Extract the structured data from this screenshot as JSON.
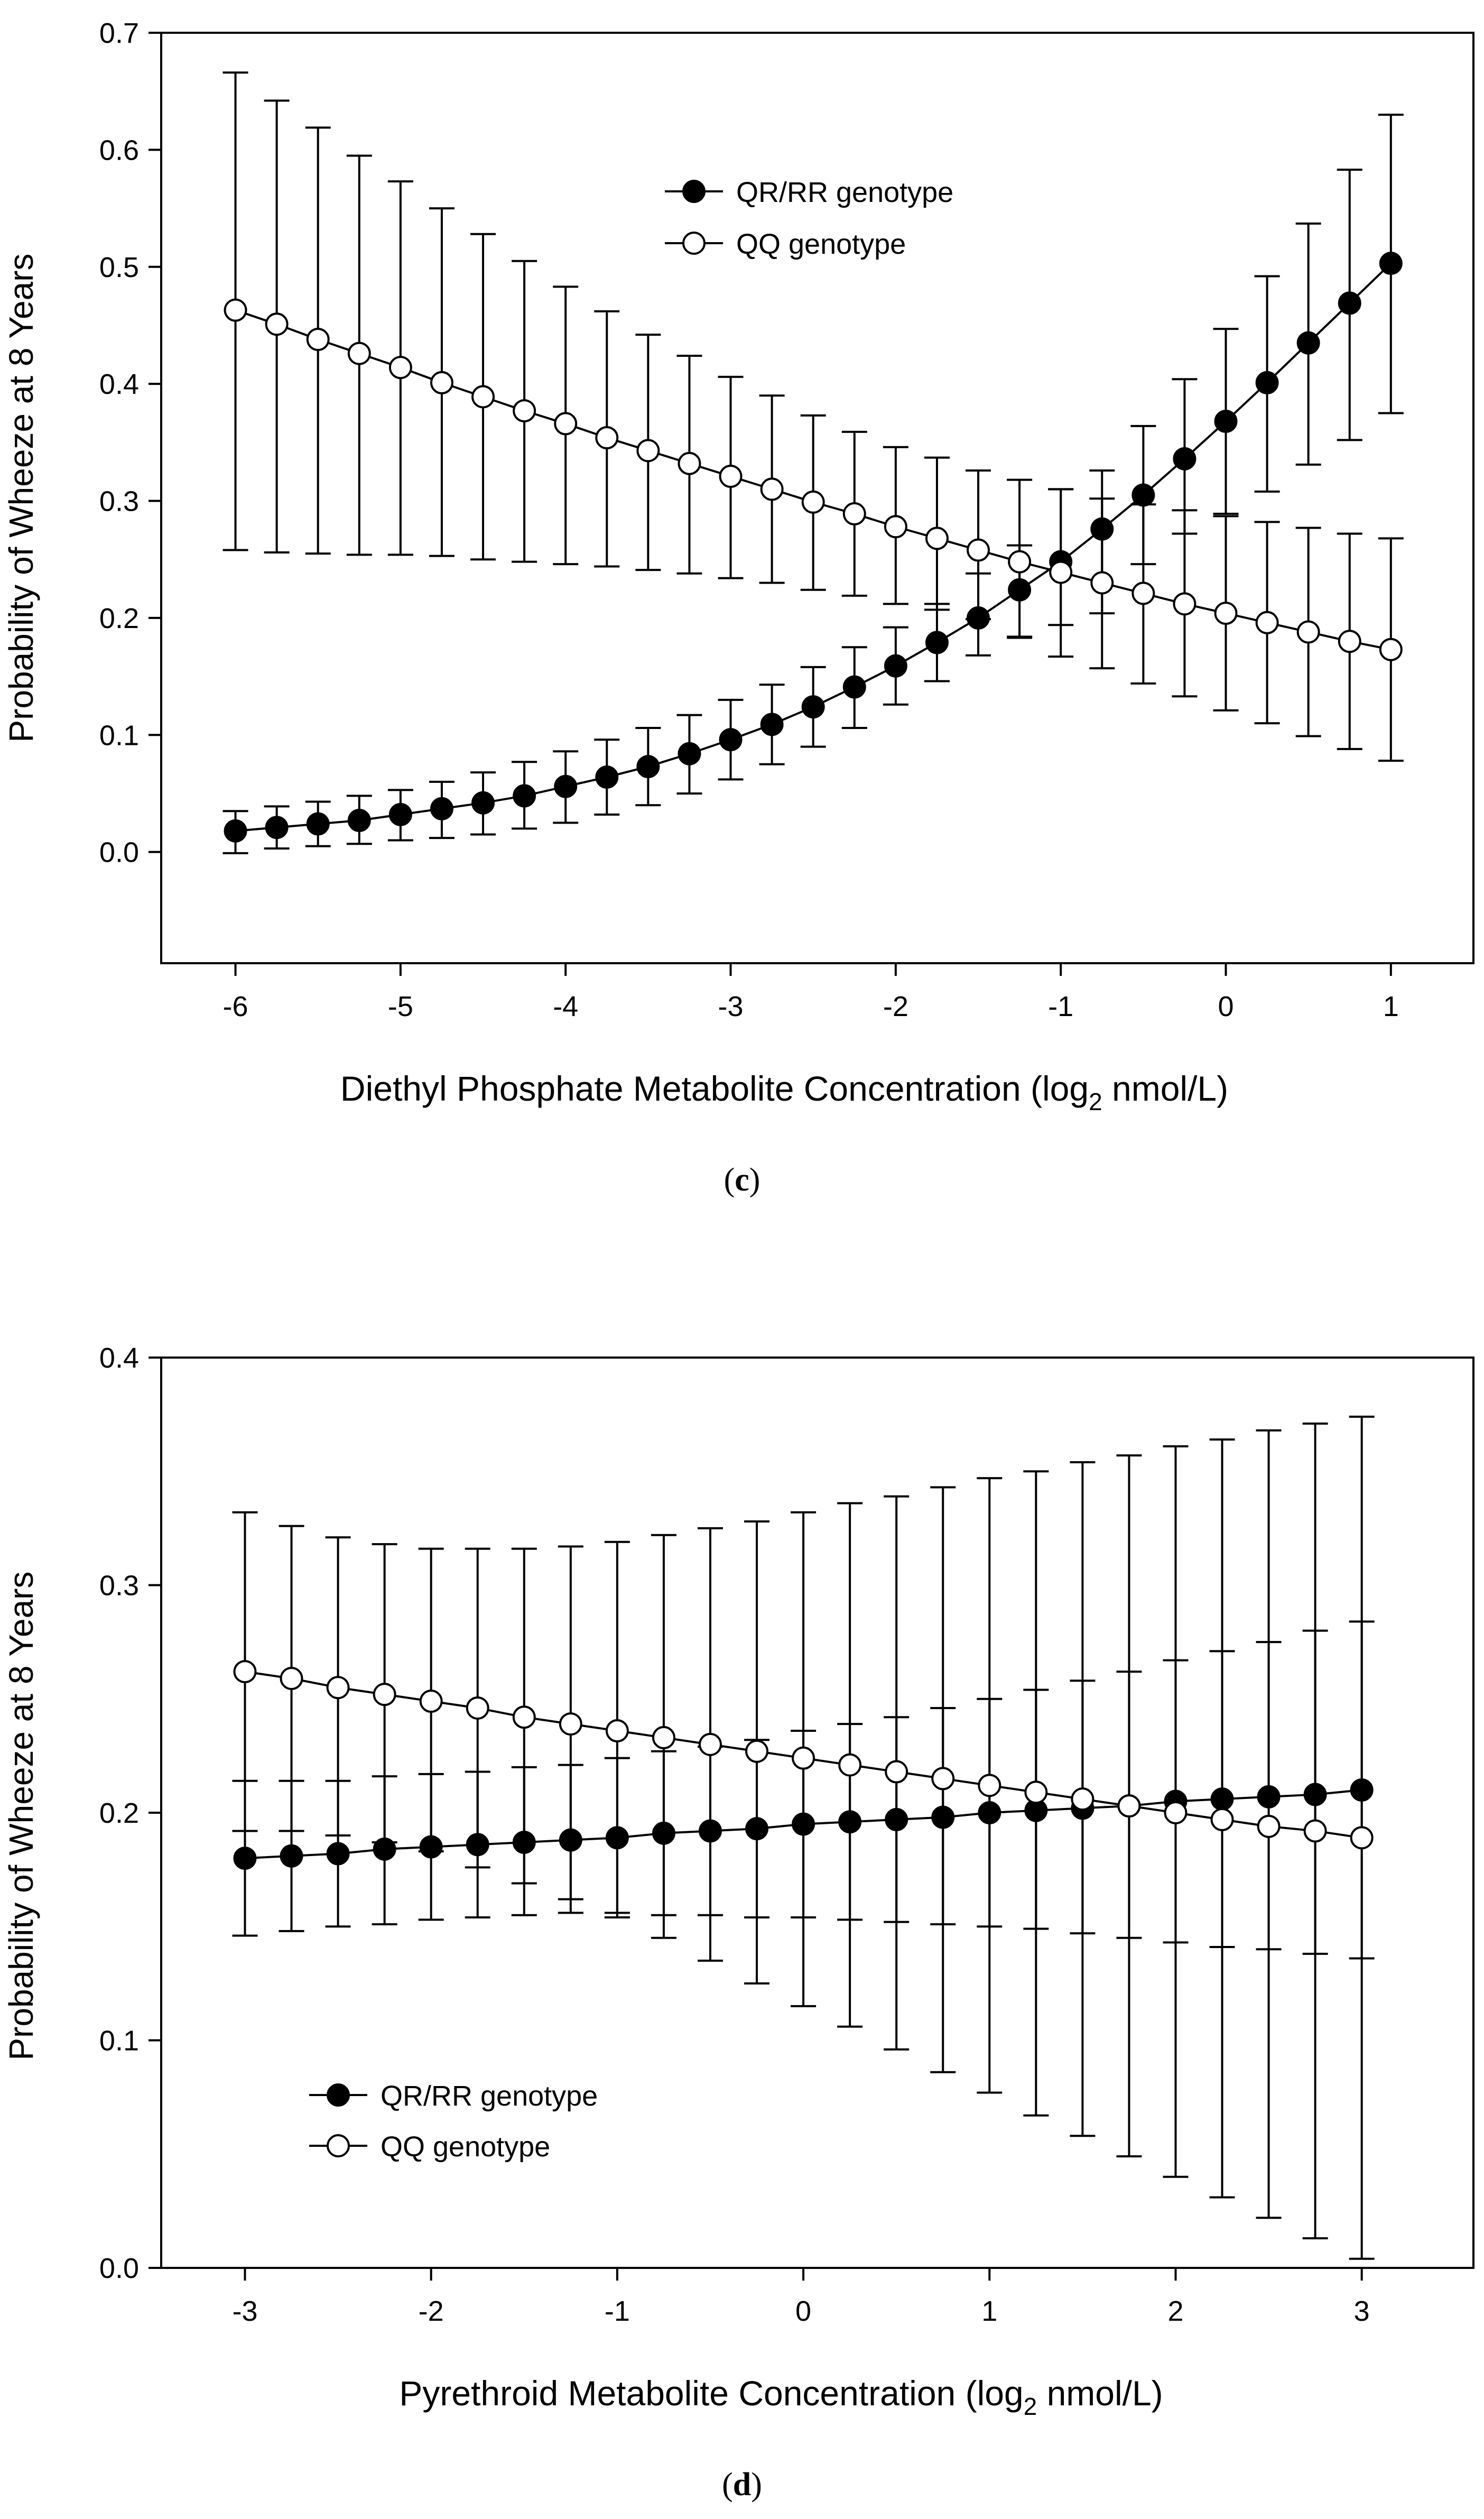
{
  "chart_data": [
    {
      "type": "line",
      "panel_label": "c",
      "title": "",
      "xlabel_main": "Diethyl Phosphate Metabolite Concentration (log",
      "xlabel_sub": "2",
      "xlabel_end": " nmol/L)",
      "ylabel": "Probability of Wheeze at 8 Years",
      "xlim": [
        -6.45,
        1.5
      ],
      "ylim": [
        -0.095,
        0.7
      ],
      "xticks": [
        -6,
        -5,
        -4,
        -3,
        -2,
        -1,
        0,
        1
      ],
      "xtick_labels": [
        "-6",
        "-5",
        "-4",
        "-3",
        "-2",
        "-1",
        "0",
        "1"
      ],
      "yticks": [
        0.0,
        0.1,
        0.2,
        0.3,
        0.4,
        0.5,
        0.6,
        0.7
      ],
      "ytick_labels": [
        "0.0",
        "0.1",
        "0.2",
        "0.3",
        "0.4",
        "0.5",
        "0.6",
        "0.7"
      ],
      "legend_position": "upper-middle",
      "x": [
        -6,
        -5.75,
        -5.5,
        -5.25,
        -5,
        -4.75,
        -4.5,
        -4.25,
        -4,
        -3.75,
        -3.5,
        -3.25,
        -3,
        -2.75,
        -2.5,
        -2.25,
        -2,
        -1.75,
        -1.5,
        -1.25,
        -1,
        -0.75,
        -0.5,
        -0.25,
        0,
        0.25,
        0.5,
        0.75,
        1
      ],
      "series": [
        {
          "name": "QR/RR genotype",
          "marker": "filled",
          "values": [
            0.018,
            0.021,
            0.024,
            0.027,
            0.032,
            0.037,
            0.042,
            0.048,
            0.056,
            0.064,
            0.073,
            0.084,
            0.096,
            0.109,
            0.124,
            0.141,
            0.159,
            0.179,
            0.2,
            0.224,
            0.248,
            0.276,
            0.305,
            0.336,
            0.368,
            0.401,
            0.435,
            0.469,
            0.503
          ],
          "lower": [
            -0.001,
            0.003,
            0.005,
            0.007,
            0.01,
            0.012,
            0.015,
            0.02,
            0.025,
            0.032,
            0.04,
            0.05,
            0.062,
            0.075,
            0.09,
            0.106,
            0.126,
            0.146,
            0.168,
            0.184,
            0.194,
            0.204,
            0.246,
            0.272,
            0.289,
            0.308,
            0.331,
            0.352,
            0.375
          ],
          "upper": [
            0.035,
            0.039,
            0.043,
            0.048,
            0.053,
            0.06,
            0.068,
            0.077,
            0.086,
            0.096,
            0.106,
            0.117,
            0.13,
            0.143,
            0.158,
            0.175,
            0.192,
            0.212,
            0.238,
            0.262,
            0.31,
            0.326,
            0.364,
            0.404,
            0.447,
            0.492,
            0.537,
            0.583,
            0.63
          ]
        },
        {
          "name": "QQ genotype",
          "marker": "open",
          "values": [
            0.463,
            0.451,
            0.438,
            0.426,
            0.414,
            0.401,
            0.389,
            0.377,
            0.366,
            0.354,
            0.343,
            0.332,
            0.321,
            0.31,
            0.299,
            0.289,
            0.278,
            0.268,
            0.258,
            0.248,
            0.239,
            0.23,
            0.221,
            0.212,
            0.204,
            0.196,
            0.188,
            0.18,
            0.173
          ],
          "lower": [
            0.258,
            0.256,
            0.255,
            0.254,
            0.254,
            0.253,
            0.25,
            0.248,
            0.246,
            0.244,
            0.241,
            0.238,
            0.234,
            0.23,
            0.224,
            0.219,
            0.212,
            0.207,
            0.199,
            0.183,
            0.167,
            0.157,
            0.144,
            0.133,
            0.121,
            0.11,
            0.099,
            0.088,
            0.078
          ],
          "upper": [
            0.666,
            0.642,
            0.619,
            0.595,
            0.573,
            0.55,
            0.528,
            0.505,
            0.483,
            0.462,
            0.442,
            0.424,
            0.406,
            0.39,
            0.373,
            0.359,
            0.346,
            0.337,
            0.326,
            0.318,
            0.31,
            0.302,
            0.297,
            0.292,
            0.287,
            0.282,
            0.277,
            0.272,
            0.268
          ]
        }
      ]
    },
    {
      "type": "line",
      "panel_label": "d",
      "title": "",
      "xlabel_main": "Pyrethroid Metabolite Concentration (log",
      "xlabel_sub": "2",
      "xlabel_end": " nmol/L)",
      "ylabel": "Probability of Wheeze at 8 Years",
      "xlim": [
        -3.45,
        3.6
      ],
      "ylim": [
        0.0,
        0.4
      ],
      "xticks": [
        -3,
        -2,
        -1,
        0,
        1,
        2,
        3
      ],
      "xtick_labels": [
        "-3",
        "-2",
        "-1",
        "0",
        "1",
        "2",
        "3"
      ],
      "yticks": [
        0.0,
        0.1,
        0.2,
        0.3,
        0.4
      ],
      "ytick_labels": [
        "0.0",
        "0.1",
        "0.2",
        "0.3",
        "0.4"
      ],
      "legend_position": "lower-left",
      "x": [
        -3,
        -2.75,
        -2.5,
        -2.25,
        -2,
        -1.75,
        -1.5,
        -1.25,
        -1,
        -0.75,
        -0.5,
        -0.25,
        0,
        0.25,
        0.5,
        0.75,
        1,
        1.25,
        1.5,
        1.75,
        2,
        2.25,
        2.5,
        2.75,
        3
      ],
      "series": [
        {
          "name": "QR/RR genotype",
          "marker": "filled",
          "values": [
            0.18,
            0.181,
            0.182,
            0.184,
            0.185,
            0.186,
            0.187,
            0.188,
            0.189,
            0.191,
            0.192,
            0.193,
            0.195,
            0.196,
            0.197,
            0.198,
            0.2,
            0.201,
            0.202,
            0.203,
            0.205,
            0.206,
            0.207,
            0.208,
            0.21
          ],
          "lower": [
            0.146,
            0.148,
            0.15,
            0.151,
            0.153,
            0.154,
            0.155,
            0.156,
            0.156,
            0.155,
            0.155,
            0.154,
            0.154,
            0.153,
            0.152,
            0.151,
            0.15,
            0.149,
            0.147,
            0.145,
            0.143,
            0.141,
            0.14,
            0.138,
            0.136
          ],
          "upper": [
            0.214,
            0.214,
            0.214,
            0.216,
            0.217,
            0.218,
            0.22,
            0.221,
            0.224,
            0.227,
            0.229,
            0.232,
            0.236,
            0.239,
            0.242,
            0.246,
            0.25,
            0.254,
            0.258,
            0.262,
            0.267,
            0.271,
            0.275,
            0.28,
            0.284
          ]
        },
        {
          "name": "QQ genotype",
          "marker": "open",
          "values": [
            0.262,
            0.259,
            0.255,
            0.252,
            0.249,
            0.246,
            0.242,
            0.239,
            0.236,
            0.233,
            0.23,
            0.227,
            0.224,
            0.221,
            0.218,
            0.215,
            0.212,
            0.209,
            0.206,
            0.203,
            0.2,
            0.197,
            0.194,
            0.192,
            0.189
          ],
          "lower": [
            0.192,
            0.192,
            0.19,
            0.187,
            0.183,
            0.176,
            0.169,
            0.162,
            0.154,
            0.145,
            0.135,
            0.125,
            0.115,
            0.106,
            0.096,
            0.086,
            0.077,
            0.067,
            0.058,
            0.049,
            0.04,
            0.031,
            0.022,
            0.013,
            0.004
          ],
          "upper": [
            0.332,
            0.326,
            0.321,
            0.318,
            0.316,
            0.316,
            0.316,
            0.317,
            0.319,
            0.322,
            0.325,
            0.328,
            0.332,
            0.336,
            0.339,
            0.343,
            0.347,
            0.35,
            0.354,
            0.357,
            0.361,
            0.364,
            0.368,
            0.371,
            0.374
          ]
        }
      ]
    }
  ]
}
